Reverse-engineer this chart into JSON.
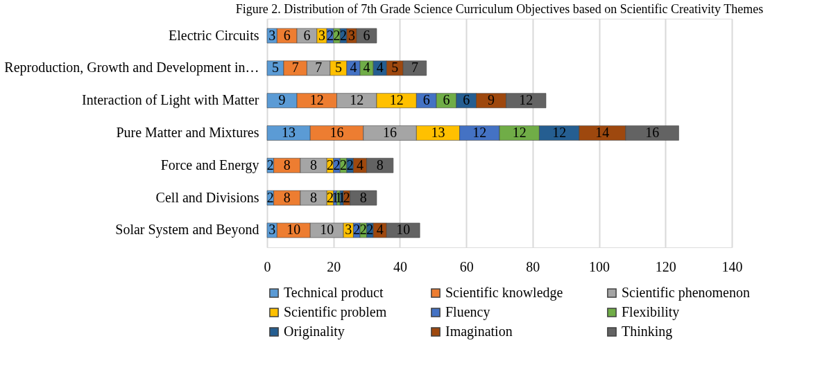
{
  "chart_data": {
    "type": "bar",
    "orientation": "horizontal",
    "stacked": true,
    "title": "Figure 2. Distribution of 7th Grade Science Curriculum Objectives based on Scientific Creativity Themes",
    "categories": [
      "Electric Circuits",
      "Reproduction, Growth and Development in…",
      "Interaction of Light with Matter",
      "Pure Matter and Mixtures",
      "Force and Energy",
      "Cell and Divisions",
      "Solar System and Beyond"
    ],
    "series": [
      {
        "name": "Technical product",
        "color": "#5b9bd5",
        "values": [
          3,
          5,
          9,
          13,
          2,
          2,
          3
        ]
      },
      {
        "name": "Scientific knowledge",
        "color": "#ed7d31",
        "values": [
          6,
          7,
          12,
          16,
          8,
          8,
          10
        ]
      },
      {
        "name": "Scientific phenomenon",
        "color": "#a5a5a5",
        "values": [
          6,
          7,
          12,
          16,
          8,
          8,
          10
        ]
      },
      {
        "name": "Scientific problem",
        "color": "#ffc000",
        "values": [
          3,
          5,
          12,
          13,
          2,
          2,
          3
        ]
      },
      {
        "name": "Fluency",
        "color": "#4472c4",
        "values": [
          2,
          4,
          6,
          12,
          2,
          1,
          2
        ]
      },
      {
        "name": "Flexibility",
        "color": "#70ad47",
        "values": [
          2,
          4,
          6,
          12,
          2,
          1,
          2
        ]
      },
      {
        "name": "Originality",
        "color": "#255e91",
        "values": [
          2,
          4,
          6,
          12,
          2,
          1,
          2
        ]
      },
      {
        "name": "Imagination",
        "color": "#9e480e",
        "values": [
          3,
          5,
          9,
          14,
          4,
          2,
          4
        ]
      },
      {
        "name": "Thinking",
        "color": "#636363",
        "values": [
          6,
          7,
          12,
          16,
          8,
          8,
          10
        ]
      }
    ],
    "xlim": [
      0,
      140
    ],
    "xticks": [
      0,
      20,
      40,
      60,
      80,
      100,
      120,
      140
    ],
    "grid": "x",
    "legend": "bottom",
    "data_labels": true
  }
}
